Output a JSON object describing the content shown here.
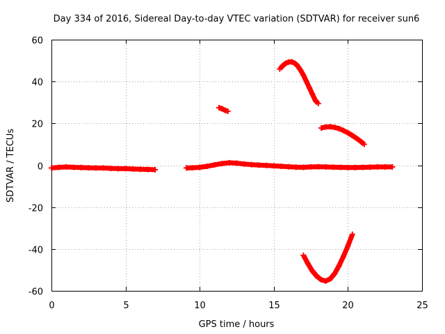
{
  "chart_data": {
    "type": "scatter",
    "title": "Day 334 of 2016, Sidereal Day-to-day VTEC variation (SDTVAR) for receiver sun6",
    "xlabel": "GPS time / hours",
    "ylabel": "SDTVAR / TECUs",
    "xlim": [
      0,
      25
    ],
    "ylim": [
      -60,
      60
    ],
    "x_ticks": [
      0,
      5,
      10,
      15,
      20,
      25
    ],
    "x_tick_labels": [
      "0",
      "5",
      "10",
      "15",
      "20",
      "25"
    ],
    "y_ticks": [
      -60,
      -40,
      -20,
      0,
      20,
      40,
      60
    ],
    "y_tick_labels": [
      "-60",
      "-40",
      "-20",
      "0",
      "20",
      "40",
      "60"
    ],
    "grid": true,
    "marker": "plus",
    "color": "#ff0000",
    "series": [
      {
        "name": "main-band-morning",
        "x": [
          0,
          0.5,
          1.0,
          1.5,
          2.0,
          2.5,
          3.0,
          3.5,
          4.0,
          4.5,
          5.0,
          5.5,
          6.0,
          6.5,
          7.0
        ],
        "y": [
          -1.3,
          -1.0,
          -0.8,
          -1.0,
          -1.1,
          -1.2,
          -1.3,
          -1.3,
          -1.5,
          -1.6,
          -1.6,
          -1.8,
          -1.9,
          -2.0,
          -2.1
        ]
      },
      {
        "name": "main-band-afternoon",
        "x": [
          9.1,
          9.5,
          10.0,
          10.5,
          11.0,
          11.5,
          12.0,
          12.5,
          13.0,
          13.5,
          14.0,
          14.5,
          15.0,
          15.5,
          16.0,
          16.5,
          17.0,
          17.5,
          18.0,
          18.5,
          19.0,
          19.5,
          20.0,
          20.5,
          21.0,
          21.5,
          22.0,
          22.5,
          23.0
        ],
        "y": [
          -1.3,
          -1.2,
          -1.0,
          -0.5,
          0.2,
          0.8,
          1.2,
          1.0,
          0.6,
          0.3,
          0.1,
          -0.1,
          -0.3,
          -0.5,
          -0.7,
          -0.9,
          -1.0,
          -0.8,
          -0.7,
          -0.8,
          -0.9,
          -1.0,
          -1.1,
          -1.1,
          -1.0,
          -0.9,
          -0.8,
          -0.8,
          -0.8
        ]
      },
      {
        "name": "short-arc-near-11h",
        "x": [
          11.3,
          11.5,
          11.7,
          11.9
        ],
        "y": [
          27.5,
          27.0,
          26.3,
          25.8
        ]
      },
      {
        "name": "upper-arc",
        "x": [
          15.4,
          15.6,
          15.8,
          16.0,
          16.2,
          16.4,
          16.6,
          16.8,
          17.0,
          17.2,
          17.4,
          17.6,
          17.8,
          18.0
        ],
        "y": [
          46,
          47.5,
          48.7,
          49.3,
          49.4,
          48.8,
          47.5,
          45.5,
          43,
          40,
          37,
          34,
          31,
          29.5
        ]
      },
      {
        "name": "middle-arc",
        "x": [
          18.2,
          18.5,
          18.8,
          19.1,
          19.4,
          19.7,
          20.0,
          20.3,
          20.6,
          20.9,
          21.1
        ],
        "y": [
          17.8,
          18.3,
          18.4,
          18.1,
          17.5,
          16.6,
          15.5,
          14.2,
          12.8,
          11.2,
          10.0
        ]
      },
      {
        "name": "lower-arc",
        "x": [
          17.0,
          17.3,
          17.6,
          17.9,
          18.2,
          18.5,
          18.8,
          19.1,
          19.4,
          19.7,
          20.0,
          20.3
        ],
        "y": [
          -43,
          -47,
          -50.5,
          -53,
          -54.7,
          -55.3,
          -54.3,
          -51.8,
          -48,
          -43.5,
          -38.5,
          -33
        ]
      }
    ]
  }
}
